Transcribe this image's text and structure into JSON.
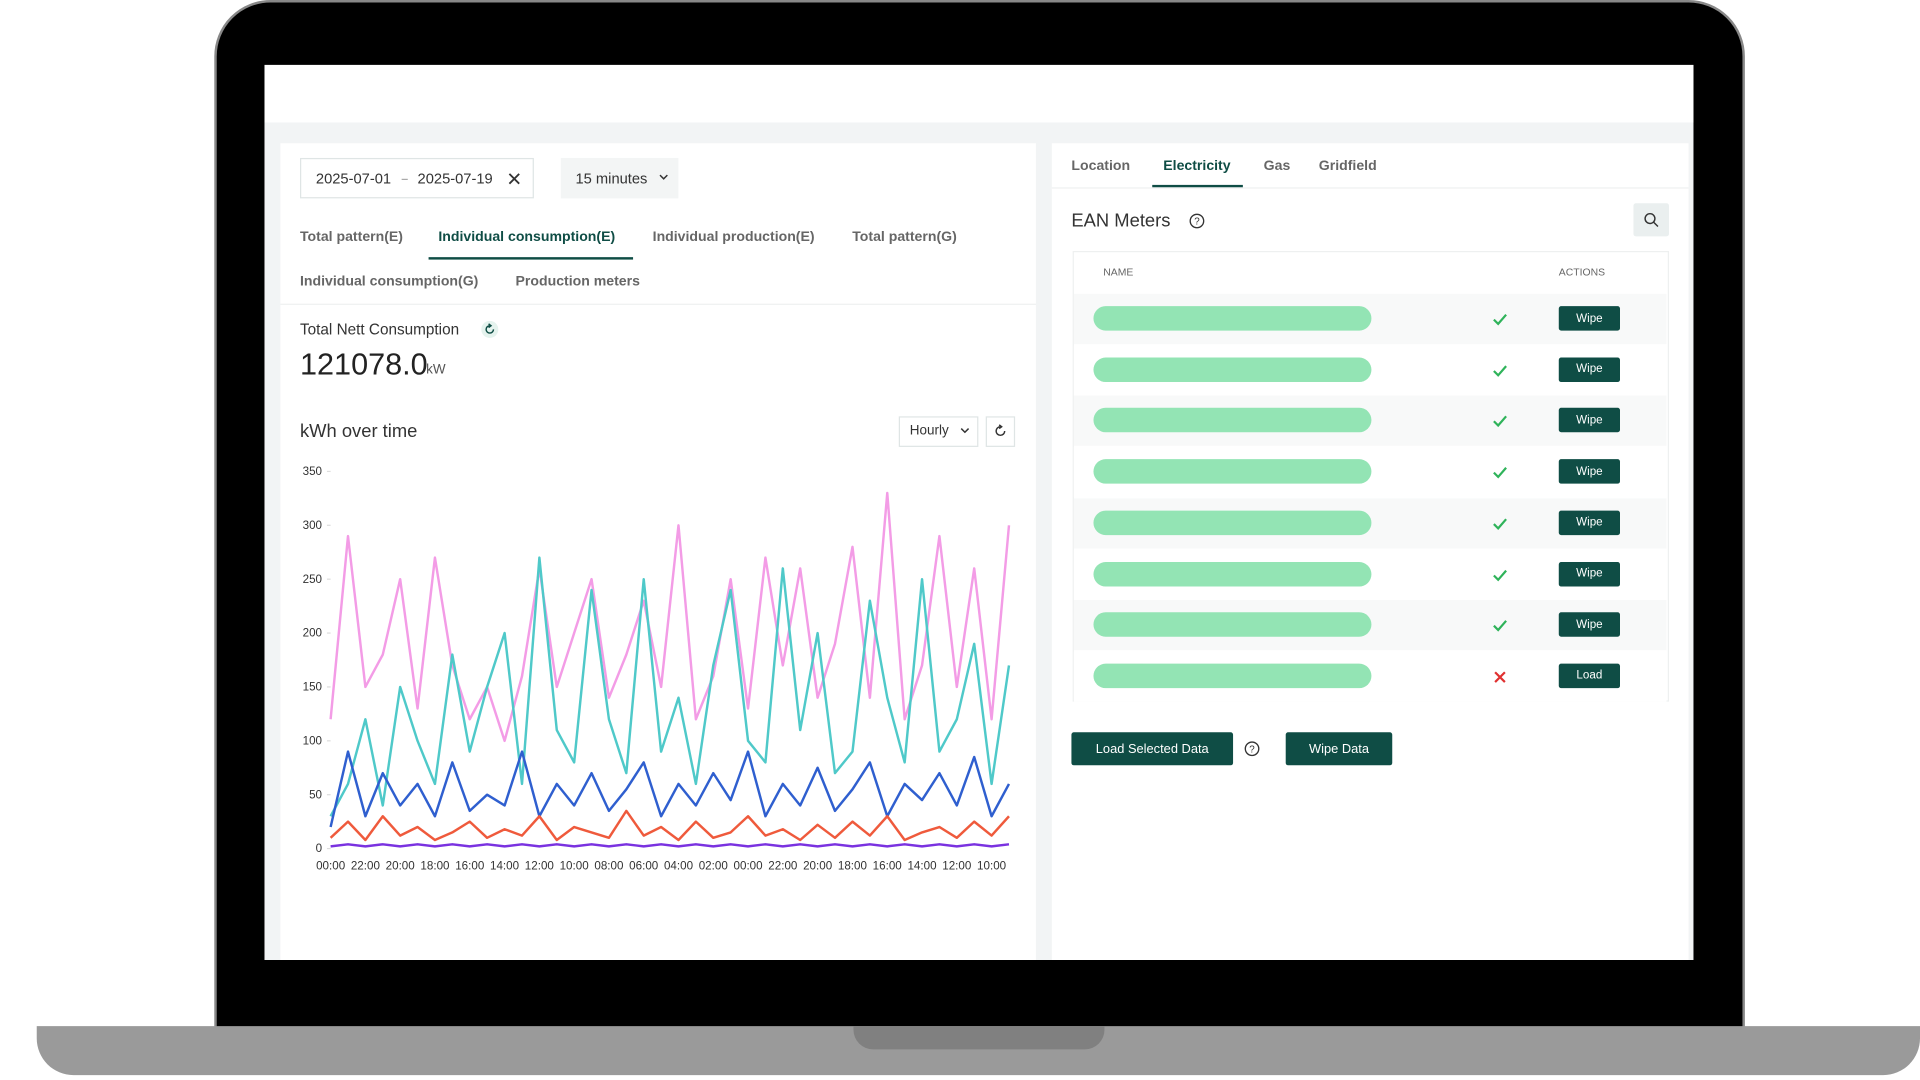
{
  "filters": {
    "date_start": "2025-07-01",
    "date_end": "2025-07-19",
    "interval": "15 minutes"
  },
  "left_tabs": [
    "Total pattern(E)",
    "Individual consumption(E)",
    "Individual production(E)",
    "Total pattern(G)",
    "Individual consumption(G)",
    "Production meters"
  ],
  "summary": {
    "label": "Total Nett Consumption",
    "value": "121078.0",
    "unit": "kW"
  },
  "chart_controls": {
    "granularity": "Hourly"
  },
  "chart_data": {
    "type": "line",
    "title": "kWh over time",
    "categories": [
      "00:00",
      null,
      "22:00",
      null,
      "20:00",
      null,
      "18:00",
      null,
      "16:00",
      null,
      "14:00",
      null,
      "12:00",
      null,
      "10:00",
      null,
      "08:00",
      null,
      "06:00",
      null,
      "04:00",
      null,
      "02:00",
      null,
      "00:00",
      null,
      "22:00",
      null,
      "20:00",
      null,
      "18:00",
      null,
      "16:00",
      null,
      "14:00",
      null,
      "12:00",
      null,
      "10:00",
      null
    ],
    "series": [
      {
        "color": "#f39ce6",
        "values": [
          120,
          290,
          150,
          180,
          250,
          130,
          270,
          170,
          120,
          150,
          100,
          160,
          260,
          150,
          200,
          250,
          140,
          180,
          230,
          150,
          300,
          120,
          160,
          250,
          130,
          270,
          170,
          260,
          140,
          190,
          280,
          140,
          330,
          120,
          170,
          290,
          150,
          260,
          120,
          300
        ]
      },
      {
        "color": "#4fc9c9",
        "values": [
          30,
          60,
          120,
          40,
          150,
          100,
          60,
          180,
          90,
          150,
          200,
          60,
          270,
          110,
          80,
          240,
          120,
          70,
          250,
          90,
          140,
          60,
          170,
          240,
          100,
          80,
          260,
          110,
          200,
          70,
          90,
          230,
          140,
          80,
          250,
          90,
          120,
          190,
          60,
          170
        ]
      },
      {
        "color": "#2f5fcf",
        "values": [
          20,
          90,
          30,
          70,
          40,
          60,
          30,
          80,
          35,
          50,
          40,
          90,
          30,
          60,
          40,
          70,
          35,
          55,
          80,
          30,
          60,
          40,
          70,
          45,
          90,
          30,
          60,
          40,
          75,
          35,
          55,
          80,
          30,
          60,
          45,
          70,
          40,
          85,
          30,
          60
        ]
      },
      {
        "color": "#ef5a3c",
        "values": [
          10,
          25,
          8,
          30,
          12,
          20,
          8,
          15,
          25,
          10,
          18,
          12,
          30,
          8,
          20,
          15,
          10,
          35,
          12,
          20,
          8,
          25,
          10,
          15,
          30,
          12,
          18,
          8,
          22,
          10,
          25,
          12,
          30,
          8,
          15,
          20,
          10,
          25,
          12,
          30
        ]
      },
      {
        "color": "#7a32e0",
        "values": [
          2,
          4,
          2,
          4,
          2,
          4,
          2,
          4,
          2,
          4,
          2,
          4,
          2,
          4,
          2,
          4,
          2,
          4,
          2,
          4,
          2,
          4,
          2,
          4,
          2,
          4,
          2,
          4,
          2,
          4,
          2,
          4,
          2,
          4,
          2,
          4,
          2,
          4,
          2,
          4
        ]
      }
    ],
    "ylim": [
      0,
      350
    ],
    "yticks": [
      0,
      50,
      100,
      150,
      200,
      250,
      300,
      350
    ]
  },
  "right_tabs": [
    "Location",
    "Electricity",
    "Gas",
    "Gridfield"
  ],
  "meters": {
    "title": "EAN Meters",
    "columns": [
      "NAME",
      "ACTIONS"
    ],
    "rows": [
      "Wipe",
      "Wipe",
      "Wipe",
      "Wipe",
      "Wipe",
      "Wipe",
      "Wipe",
      "Load"
    ]
  },
  "footer_buttons": [
    "Load Selected Data",
    "Wipe Data"
  ]
}
